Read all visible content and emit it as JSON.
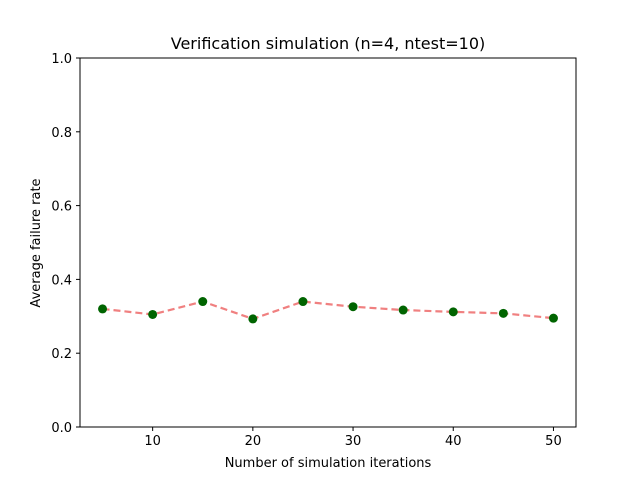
{
  "chart_data": {
    "type": "line",
    "title": "Verification simulation (n=4, ntest=10)",
    "xlabel": "Number of simulation iterations",
    "ylabel": "Average failure rate",
    "xlim": [
      2.75,
      52.25
    ],
    "ylim": [
      0.0,
      1.0
    ],
    "xticks": [
      10,
      20,
      30,
      40,
      50
    ],
    "yticks": [
      0.0,
      0.2,
      0.4,
      0.6,
      0.8,
      1.0
    ],
    "grid": false,
    "series": [
      {
        "x": [
          5,
          10,
          15,
          20,
          25,
          30,
          35,
          40,
          45,
          50
        ],
        "y": [
          0.32,
          0.305,
          0.34,
          0.293,
          0.34,
          0.326,
          0.317,
          0.312,
          0.308,
          0.295
        ],
        "line_color": "#f08080",
        "line_style": "dashed",
        "marker_color": "#006400",
        "marker": "circle"
      }
    ]
  }
}
